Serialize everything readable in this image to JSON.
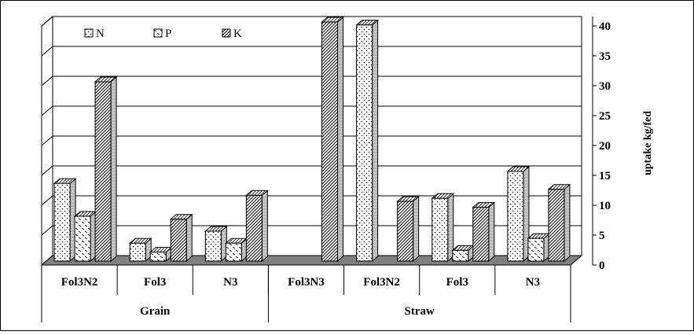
{
  "chart_data": {
    "type": "bar",
    "subtype": "3d-clustered-column",
    "groups": [
      {
        "name": "Grain",
        "categories": [
          "Fol3N2",
          "Fol3",
          "N3"
        ]
      },
      {
        "name": "Straw",
        "categories": [
          "Fol3N3",
          "Fol3N2",
          "Fol3",
          "N3"
        ]
      }
    ],
    "categories": [
      "Fol3N2",
      "Fol3",
      "N3",
      "Fol3N3",
      "Fol3N2",
      "Fol3",
      "N3"
    ],
    "series": [
      {
        "name": "N",
        "values": [
          13,
          3,
          5,
          null,
          39.5,
          10.5,
          15
        ],
        "pattern": "dots"
      },
      {
        "name": "P",
        "values": [
          7.5,
          1.5,
          3,
          null,
          null,
          1.8,
          3.8
        ],
        "pattern": "light-dash"
      },
      {
        "name": "K",
        "values": [
          30,
          7,
          11,
          40,
          10,
          9,
          12
        ],
        "pattern": "diagonal-dense"
      }
    ],
    "legend_labels": [
      "N",
      "P",
      "K"
    ],
    "legend_position": "top-left",
    "ylabel": "uptake kg/fed",
    "y_axis_position": "right",
    "ylim": [
      0,
      40
    ],
    "yticks": [
      0,
      5,
      10,
      15,
      20,
      25,
      30,
      35,
      40
    ],
    "grid": true,
    "colors": {
      "floor": "#808080",
      "wall": "#ffffff",
      "bar_fill": "#ffffff",
      "stroke": "#000000"
    }
  }
}
